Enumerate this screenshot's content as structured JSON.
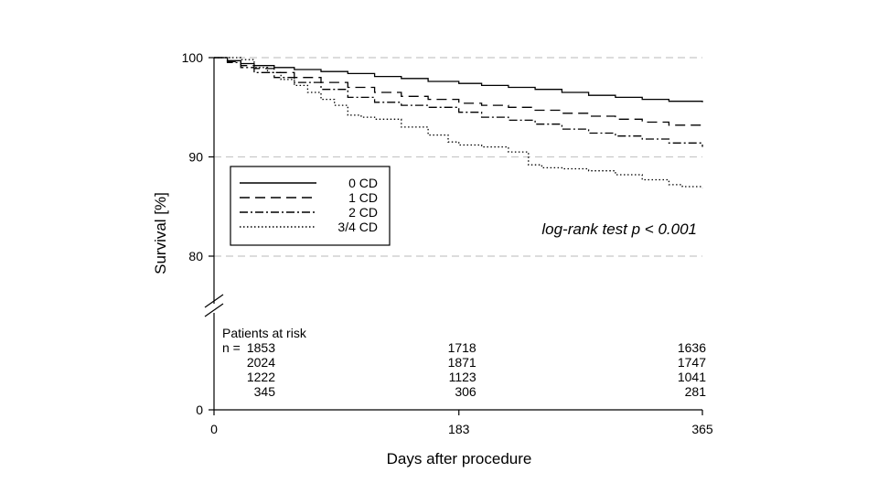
{
  "chart_data": {
    "type": "line",
    "xlabel": "Days after procedure",
    "ylabel": "Survival [%]",
    "xlim": [
      0,
      365
    ],
    "x_ticks": [
      "0",
      "183",
      "365"
    ],
    "y_ticks": [
      "100",
      "90",
      "80",
      "0"
    ],
    "ylim_upper_panel": [
      75,
      100
    ],
    "broken_y_axis": true,
    "grid": "dashed horizontal at 80, 90, 100",
    "legend_position": "left-middle",
    "annotation": "log-rank test p < 0.001",
    "series": [
      {
        "name": "0 CD",
        "style": "solid",
        "x": [
          0,
          10,
          20,
          30,
          45,
          60,
          80,
          100,
          120,
          140,
          160,
          183,
          200,
          220,
          240,
          260,
          280,
          300,
          320,
          340,
          365
        ],
        "y": [
          100,
          99.7,
          99.4,
          99.2,
          99.0,
          98.8,
          98.6,
          98.4,
          98.1,
          97.9,
          97.6,
          97.4,
          97.2,
          97.0,
          96.8,
          96.5,
          96.2,
          96.0,
          95.8,
          95.6,
          95.5
        ]
      },
      {
        "name": "1 CD",
        "style": "dashed",
        "x": [
          0,
          10,
          20,
          30,
          45,
          60,
          80,
          100,
          120,
          140,
          160,
          183,
          200,
          220,
          240,
          260,
          280,
          300,
          320,
          340,
          365
        ],
        "y": [
          100,
          99.6,
          99.2,
          98.9,
          98.5,
          98.0,
          97.5,
          97.0,
          96.5,
          96.1,
          95.8,
          95.4,
          95.2,
          95.0,
          94.7,
          94.4,
          94.1,
          93.8,
          93.5,
          93.2,
          92.9
        ]
      },
      {
        "name": "2 CD",
        "style": "dash-dot",
        "x": [
          0,
          10,
          20,
          30,
          45,
          60,
          80,
          100,
          120,
          140,
          160,
          183,
          200,
          220,
          240,
          260,
          280,
          300,
          320,
          340,
          365
        ],
        "y": [
          100,
          99.5,
          99.0,
          98.5,
          98.0,
          97.5,
          96.8,
          96.0,
          95.5,
          95.2,
          95.0,
          94.5,
          94.0,
          93.7,
          93.3,
          92.8,
          92.4,
          92.1,
          91.8,
          91.4,
          91.0
        ]
      },
      {
        "name": "3/4 CD",
        "style": "dotted",
        "x": [
          0,
          10,
          20,
          30,
          40,
          50,
          60,
          70,
          80,
          90,
          100,
          110,
          120,
          140,
          160,
          175,
          183,
          200,
          220,
          235,
          245,
          260,
          280,
          300,
          320,
          340,
          350,
          365
        ],
        "y": [
          100,
          100,
          99.8,
          99.0,
          98.5,
          97.8,
          97.2,
          96.5,
          95.8,
          95.2,
          94.2,
          94.0,
          93.8,
          93.0,
          92.2,
          91.5,
          91.2,
          91.0,
          90.5,
          89.2,
          88.9,
          88.8,
          88.6,
          88.2,
          87.7,
          87.2,
          87.0,
          86.9
        ]
      }
    ],
    "patients_at_risk": {
      "title": "Patients at risk",
      "n_prefix": "n = ",
      "at_days": [
        0,
        183,
        365
      ],
      "rows": [
        [
          "1853",
          "1718",
          "1636"
        ],
        [
          "2024",
          "1871",
          "1747"
        ],
        [
          "1222",
          "1123",
          "1041"
        ],
        [
          "345",
          "306",
          "281"
        ]
      ]
    }
  }
}
